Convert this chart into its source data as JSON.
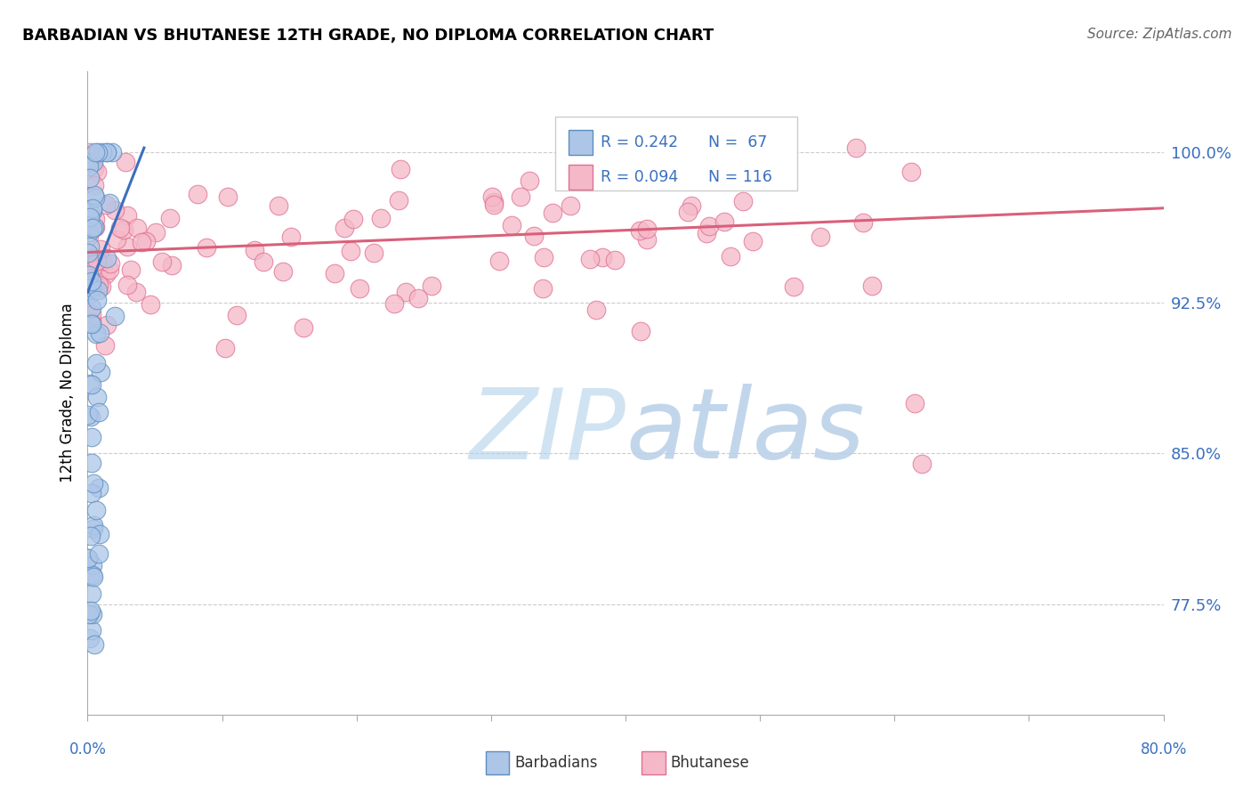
{
  "title": "BARBADIAN VS BHUTANESE 12TH GRADE, NO DIPLOMA CORRELATION CHART",
  "source": "Source: ZipAtlas.com",
  "ylabel_label": "12th Grade, No Diploma",
  "ytick_labels": [
    "77.5%",
    "85.0%",
    "92.5%",
    "100.0%"
  ],
  "ytick_values": [
    0.775,
    0.85,
    0.925,
    1.0
  ],
  "xlim": [
    0.0,
    0.8
  ],
  "ylim": [
    0.72,
    1.04
  ],
  "legend_R_blue": "R = 0.242",
  "legend_N_blue": "N =  67",
  "legend_R_pink": "R = 0.094",
  "legend_N_pink": "N = 116",
  "color_blue_fill": "#adc6e8",
  "color_blue_edge": "#5b8dbe",
  "color_pink_fill": "#f5b8c8",
  "color_pink_edge": "#e07090",
  "color_blue_line": "#3a6fbf",
  "color_pink_line": "#d9607a",
  "watermark_color": "#ddeaf5",
  "watermark_text": "ZIPatlas"
}
